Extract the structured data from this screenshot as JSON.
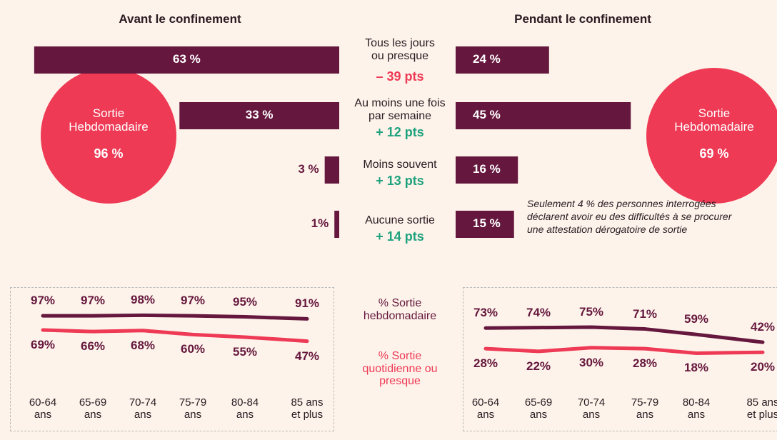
{
  "chart_data": [
    {
      "type": "bar",
      "title": "Avant le confinement",
      "categories": [
        "Tous les jours ou presque",
        "Au moins une fois par semaine",
        "Moins souvent",
        "Aucune sortie"
      ],
      "values": [
        63,
        33,
        3,
        1
      ],
      "value_labels": [
        "63 %",
        "33 %",
        "3 %",
        "1%"
      ],
      "color": "#65173d",
      "summary_label": "Sortie Hebdomadaire",
      "summary_value_label": "96 %",
      "summary_color": "#ee3a55"
    },
    {
      "type": "bar",
      "title": "Pendant le confinement",
      "values": [
        24,
        45,
        16,
        15
      ],
      "value_labels": [
        "24 %",
        "45 %",
        "16 %",
        "15 %"
      ],
      "color": "#65173d",
      "summary_label": "Sortie Hebdomadaire",
      "summary_value_label": "69 %",
      "summary_color": "#ee3a55"
    },
    {
      "type": "line",
      "categories": [
        "60-64 ans",
        "65-69 ans",
        "70-74 ans",
        "75-79 ans",
        "80-84 ans",
        "85 ans et plus"
      ],
      "series": [
        {
          "name": "% Sortie hebdomadaire",
          "color": "#65173d",
          "values": [
            97,
            97,
            98,
            97,
            95,
            91
          ],
          "value_labels": [
            "97%",
            "97%",
            "98%",
            "97%",
            "95%",
            "91%"
          ]
        },
        {
          "name": "% Sortie quotidienne ou presque",
          "color": "#ee3a55",
          "values": [
            69,
            66,
            68,
            60,
            55,
            47
          ],
          "value_labels": [
            "69%",
            "66%",
            "68%",
            "60%",
            "55%",
            "47%"
          ]
        }
      ]
    },
    {
      "type": "line",
      "categories": [
        "60-64 ans",
        "65-69 ans",
        "70-74 ans",
        "75-79 ans",
        "80-84 ans",
        "85 ans et plus"
      ],
      "series": [
        {
          "name": "% Sortie hebdomadaire",
          "color": "#65173d",
          "values": [
            73,
            74,
            75,
            71,
            59,
            42
          ],
          "value_labels": [
            "73%",
            "74%",
            "75%",
            "71%",
            "59%",
            "42%"
          ]
        },
        {
          "name": "% Sortie quotidienne ou presque",
          "color": "#ee3a55",
          "values": [
            28,
            22,
            30,
            28,
            18,
            20
          ],
          "value_labels": [
            "28%",
            "22%",
            "30%",
            "28%",
            "18%",
            "20%"
          ]
        }
      ]
    }
  ],
  "changes": [
    "– 39 pts",
    "+ 12 pts",
    "+ 13 pts",
    "+ 14 pts"
  ],
  "note": "Seulement 4 % des personnes interrogées déclarent avoir eu des difficultés à se procurer une attestation dérogatoire de sortie"
}
